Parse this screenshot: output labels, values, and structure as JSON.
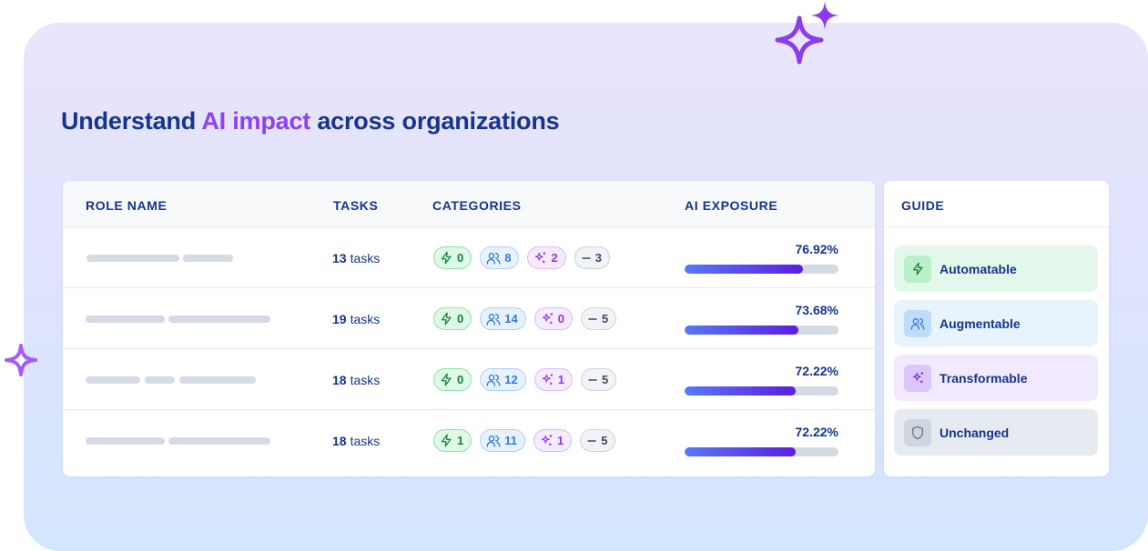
{
  "title": {
    "before": "Understand ",
    "highlight": "AI impact",
    "after": " across organizations"
  },
  "table": {
    "headers": [
      "ROLE NAME",
      "TASKS",
      "CATEGORIES",
      "AI EXPOSURE"
    ],
    "rows": [
      {
        "tasks": {
          "count": "13",
          "unit": "tasks"
        },
        "categories": [
          0,
          8,
          2,
          3
        ],
        "exposure": {
          "value": 76.92,
          "label": "76.92%"
        }
      },
      {
        "tasks": {
          "count": "19",
          "unit": "tasks"
        },
        "categories": [
          0,
          14,
          0,
          5
        ],
        "exposure": {
          "value": 73.68,
          "label": "73.68%"
        }
      },
      {
        "tasks": {
          "count": "18",
          "unit": "tasks"
        },
        "categories": [
          0,
          12,
          1,
          5
        ],
        "exposure": {
          "value": 72.22,
          "label": "72.22%"
        }
      },
      {
        "tasks": {
          "count": "18",
          "unit": "tasks"
        },
        "categories": [
          1,
          11,
          1,
          5
        ],
        "exposure": {
          "value": 72.22,
          "label": "72.22%"
        }
      }
    ]
  },
  "guide": {
    "title": "GUIDE",
    "items": [
      "Automatable",
      "Augmentable",
      "Transformable",
      "Unchanged"
    ]
  }
}
